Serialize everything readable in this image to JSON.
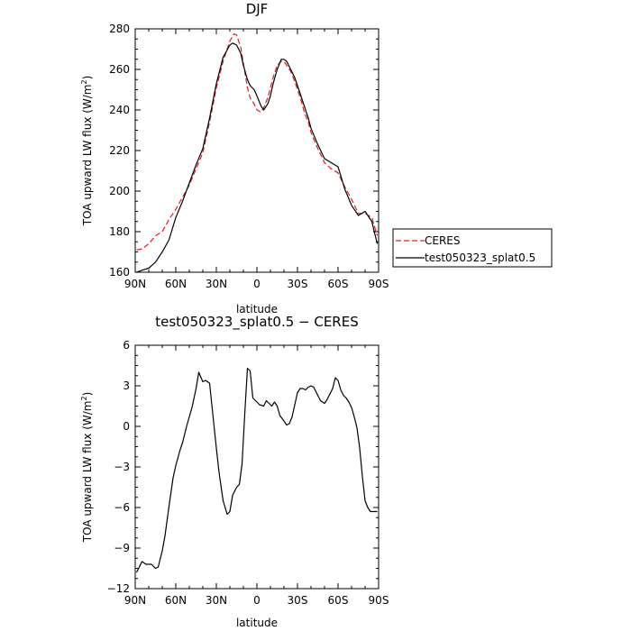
{
  "chart_data": [
    {
      "type": "line",
      "title": "DJF",
      "xlabel": "latitude",
      "ylabel": "TOA upward LW flux (W/m",
      "ylabel_sup": "2",
      "ylabel_close": ")",
      "xlim": [
        90,
        -90
      ],
      "ylim": [
        160,
        280
      ],
      "x_ticks": [
        90,
        60,
        30,
        0,
        -30,
        -60,
        -90
      ],
      "x_tick_labels": [
        "90N",
        "60N",
        "30N",
        "0",
        "30S",
        "60S",
        "90S"
      ],
      "y_ticks": [
        160,
        180,
        200,
        220,
        240,
        260,
        280
      ],
      "y_tick_labels": [
        "160",
        "180",
        "200",
        "220",
        "240",
        "260",
        "280"
      ],
      "legend_position": "outside-right",
      "series": [
        {
          "name": "CERES",
          "color": "#e41a1c",
          "dash": "dashed",
          "x": [
            89,
            85,
            80,
            75,
            70,
            65,
            60,
            55,
            50,
            45,
            40,
            35,
            30,
            25,
            20,
            17,
            15,
            12,
            10,
            7,
            5,
            2,
            0,
            -3,
            -5,
            -8,
            -10,
            -12,
            -15,
            -18,
            -20,
            -22,
            -25,
            -28,
            -30,
            -33,
            -35,
            -38,
            -40,
            -45,
            -50,
            -55,
            -60,
            -65,
            -70,
            -75,
            -80,
            -85,
            -89
          ],
          "y": [
            171,
            171.5,
            174,
            178,
            180,
            186,
            191,
            197,
            203,
            211,
            219,
            234,
            251,
            264,
            274,
            277.5,
            277,
            271,
            263,
            251,
            246,
            243,
            240,
            239,
            241,
            246,
            251,
            256,
            262,
            264,
            264,
            262,
            259,
            254,
            250,
            244,
            239,
            234,
            229,
            221,
            214,
            211,
            209,
            202,
            196,
            189,
            189,
            187,
            178
          ]
        },
        {
          "name": "test050323_splat0.5",
          "color": "#000000",
          "dash": "solid",
          "x": [
            89,
            85,
            80,
            75,
            70,
            65,
            60,
            55,
            50,
            45,
            40,
            35,
            30,
            25,
            20,
            18,
            15,
            12,
            10,
            7,
            5,
            2,
            0,
            -3,
            -5,
            -8,
            -10,
            -12,
            -15,
            -18,
            -20,
            -22,
            -25,
            -28,
            -30,
            -33,
            -35,
            -38,
            -40,
            -45,
            -50,
            -55,
            -60,
            -65,
            -70,
            -75,
            -80,
            -85,
            -89
          ],
          "y": [
            160,
            161,
            162,
            165,
            170,
            176,
            187,
            195,
            204,
            213,
            221,
            236,
            253,
            266,
            272,
            273,
            272,
            268,
            262,
            255,
            252,
            250,
            247,
            242,
            240,
            243,
            247,
            253,
            260,
            265,
            265,
            264,
            260,
            256,
            252,
            246,
            242,
            236,
            231,
            223,
            216,
            214,
            212,
            201,
            193,
            188,
            190,
            185,
            174
          ]
        }
      ]
    },
    {
      "type": "line",
      "title": "test050323_splat0.5 − CERES",
      "xlabel": "latitude",
      "ylabel": "TOA upward LW flux (W/m",
      "ylabel_sup": "2",
      "ylabel_close": ")",
      "xlim": [
        90,
        -90
      ],
      "ylim": [
        -12,
        6
      ],
      "x_ticks": [
        90,
        60,
        30,
        0,
        -30,
        -60,
        -90
      ],
      "x_tick_labels": [
        "90N",
        "60N",
        "30N",
        "0",
        "30S",
        "60S",
        "90S"
      ],
      "y_ticks": [
        -12,
        -9,
        -6,
        -3,
        0,
        3,
        6
      ],
      "y_tick_labels": [
        "−12",
        "−9",
        "−6",
        "−3",
        "0",
        "3",
        "6"
      ],
      "series": [
        {
          "name": "test050323_splat0.5 - CERES",
          "color": "#000000",
          "dash": "solid",
          "x": [
            89,
            87,
            85,
            82,
            80,
            78,
            75,
            73,
            70,
            68,
            65,
            62,
            60,
            57,
            55,
            52,
            50,
            48,
            45,
            43,
            40,
            38,
            35,
            32,
            30,
            28,
            25,
            22,
            20,
            18,
            15,
            13,
            11,
            9,
            7,
            5,
            3,
            0,
            -2,
            -5,
            -7,
            -9,
            -11,
            -13,
            -15,
            -17,
            -20,
            -22,
            -24,
            -26,
            -28,
            -30,
            -32,
            -34,
            -36,
            -38,
            -40,
            -42,
            -45,
            -47,
            -50,
            -52,
            -54,
            -56,
            -58,
            -60,
            -62,
            -64,
            -66,
            -68,
            -70,
            -72,
            -74,
            -76,
            -78,
            -80,
            -82,
            -84,
            -86,
            -88,
            -89
          ],
          "y": [
            -10.8,
            -10.4,
            -10.0,
            -10.2,
            -10.2,
            -10.2,
            -10.5,
            -10.4,
            -9.2,
            -8.1,
            -5.9,
            -3.8,
            -2.9,
            -1.8,
            -1.2,
            0.0,
            0.7,
            1.4,
            2.8,
            4.0,
            3.3,
            3.4,
            3.2,
            0.3,
            -1.6,
            -3.4,
            -5.5,
            -6.5,
            -6.3,
            -5.1,
            -4.5,
            -4.3,
            -2.8,
            0.9,
            4.3,
            4.1,
            2.1,
            1.8,
            1.6,
            1.5,
            1.9,
            1.7,
            1.5,
            1.8,
            1.5,
            0.8,
            0.4,
            0.1,
            0.2,
            0.7,
            1.6,
            2.5,
            2.8,
            2.8,
            2.7,
            2.9,
            3.0,
            2.9,
            2.3,
            1.9,
            1.7,
            2.0,
            2.4,
            2.8,
            3.6,
            3.4,
            2.7,
            2.3,
            2.1,
            1.8,
            1.4,
            0.7,
            -0.1,
            -1.6,
            -3.7,
            -5.5,
            -6.0,
            -6.3,
            -6.3,
            -6.3,
            -6.3
          ]
        }
      ]
    }
  ]
}
